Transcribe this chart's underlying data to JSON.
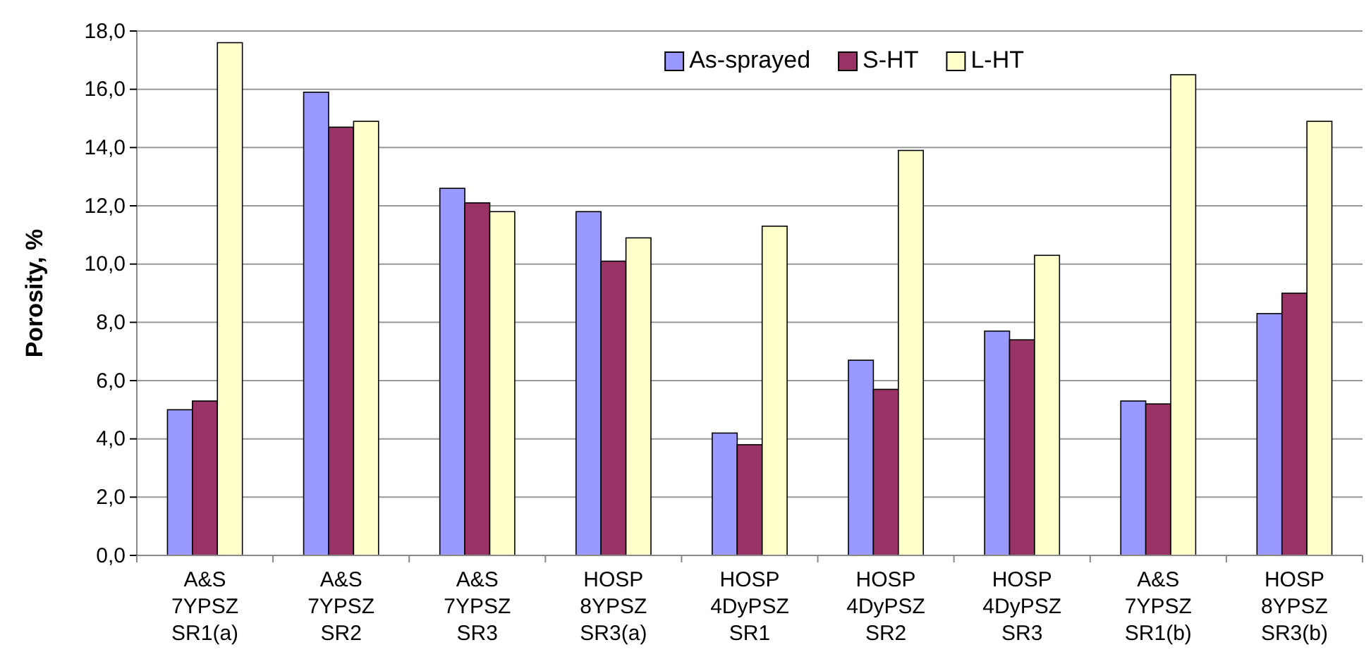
{
  "chart_data": {
    "type": "bar",
    "ylabel": "Porosity, %",
    "categories": [
      "A&S\n7YPSZ\nSR1(a)",
      "A&S\n7YPSZ\nSR2",
      "A&S\n7YPSZ\nSR3",
      "HOSP\n8YPSZ\nSR3(a)",
      "HOSP\n4DyPSZ\nSR1",
      "HOSP\n4DyPSZ\nSR2",
      "HOSP\n4DyPSZ\nSR3",
      "A&S\n7YPSZ\nSR1(b)",
      "HOSP\n8YPSZ\nSR3(b)"
    ],
    "series": [
      {
        "name": "As-sprayed",
        "color": "#9999ff",
        "values": [
          5.0,
          15.9,
          12.6,
          11.8,
          4.2,
          6.7,
          7.7,
          5.3,
          8.3
        ]
      },
      {
        "name": "S-HT",
        "color": "#993366",
        "values": [
          5.3,
          14.7,
          12.1,
          10.1,
          3.8,
          5.7,
          7.4,
          5.2,
          9.0
        ]
      },
      {
        "name": "L-HT",
        "color": "#ffffcc",
        "values": [
          17.6,
          14.9,
          11.8,
          10.9,
          11.3,
          13.9,
          10.3,
          16.5,
          14.9
        ]
      }
    ],
    "ylim": [
      0,
      18
    ],
    "yticks": [
      {
        "value": 0,
        "label": "0,0"
      },
      {
        "value": 2,
        "label": "2,0"
      },
      {
        "value": 4,
        "label": "4,0"
      },
      {
        "value": 6,
        "label": "6,0"
      },
      {
        "value": 8,
        "label": "8,0"
      },
      {
        "value": 10,
        "label": "10,0"
      },
      {
        "value": 12,
        "label": "12,0"
      },
      {
        "value": 14,
        "label": "14,0"
      },
      {
        "value": 16,
        "label": "16,0"
      },
      {
        "value": 18,
        "label": "18,0"
      }
    ],
    "grid": "y",
    "legend": "top right"
  }
}
